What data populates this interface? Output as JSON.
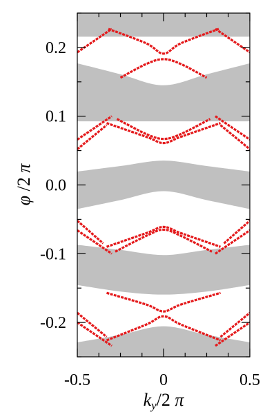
{
  "chart_data": {
    "type": "line",
    "xlabel": "k_y/2 π",
    "ylabel": "φ /2 π",
    "xlim": [
      -0.5,
      0.5
    ],
    "ylim": [
      -0.25,
      0.25
    ],
    "x_ticks": [
      -0.5,
      0,
      0.5
    ],
    "x_tick_labels": [
      "-0.5",
      "0",
      "0.5"
    ],
    "y_ticks": [
      -0.2,
      -0.1,
      0.0,
      0.1,
      0.2
    ],
    "y_tick_labels": [
      "-0.2",
      "-0.1",
      "0.0",
      "0.1",
      "0.2"
    ],
    "grid": false,
    "colors": {
      "bands": "#c0c0c0",
      "edge_states": "#e41a1c",
      "axes": "#000000"
    },
    "bands": [
      {
        "x": [
          -0.5,
          0.0,
          0.5
        ],
        "y_lower": [
          0.2157,
          0.2157,
          0.2157
        ],
        "y_upper": [
          0.25,
          0.25,
          0.25
        ]
      },
      {
        "x": [
          -0.5,
          -0.25,
          0.0,
          0.25,
          0.5
        ],
        "y_lower": [
          0.0925,
          0.0925,
          0.0925,
          0.0925,
          0.0925
        ],
        "y_upper": [
          0.177,
          0.161,
          0.145,
          0.161,
          0.177
        ]
      },
      {
        "x": [
          -0.5,
          -0.25,
          0.0,
          0.25,
          0.5
        ],
        "y_lower": [
          -0.035,
          -0.022,
          -0.009,
          -0.022,
          -0.035
        ],
        "y_upper": [
          0.0195,
          0.0275,
          0.0355,
          0.0275,
          0.0195
        ]
      },
      {
        "x": [
          -0.5,
          -0.25,
          0.0,
          0.25,
          0.5
        ],
        "y_lower": [
          -0.1455,
          -0.155,
          -0.1595,
          -0.155,
          -0.1455
        ],
        "y_upper": [
          -0.087,
          -0.0945,
          -0.102,
          -0.0945,
          -0.087
        ]
      },
      {
        "x": [
          -0.5,
          -0.25,
          0.0,
          0.25,
          0.5
        ],
        "y_lower": [
          -0.25,
          -0.25,
          -0.25,
          -0.25,
          -0.25
        ],
        "y_upper": [
          -0.229,
          -0.218,
          -0.2055,
          -0.218,
          -0.229
        ]
      }
    ],
    "edge_states": [
      {
        "x": [
          -0.5,
          -0.3
        ],
        "y": [
          0.193,
          0.227
        ]
      },
      {
        "x": [
          -0.32,
          -0.1,
          0.0,
          0.1,
          0.32
        ],
        "y": [
          0.227,
          0.206,
          0.191,
          0.206,
          0.227
        ]
      },
      {
        "x": [
          -0.25,
          -0.1,
          0.0,
          0.1,
          0.25
        ],
        "y": [
          0.156,
          0.176,
          0.183,
          0.176,
          0.156
        ]
      },
      {
        "x": [
          0.3,
          0.5
        ],
        "y": [
          0.227,
          0.193
        ]
      },
      {
        "x": [
          -0.5,
          -0.33
        ],
        "y": [
          0.052,
          0.087
        ]
      },
      {
        "x": [
          -0.5,
          -0.3
        ],
        "y": [
          0.066,
          0.1
        ]
      },
      {
        "x": [
          -0.33,
          -0.1,
          0.0,
          0.1,
          0.33
        ],
        "y": [
          0.09,
          0.07,
          0.061,
          0.07,
          0.09
        ]
      },
      {
        "x": [
          -0.27,
          -0.1,
          0.0,
          0.1,
          0.27
        ],
        "y": [
          0.096,
          0.074,
          0.067,
          0.074,
          0.096
        ]
      },
      {
        "x": [
          0.3,
          0.5
        ],
        "y": [
          0.1,
          0.066
        ]
      },
      {
        "x": [
          0.33,
          0.5
        ],
        "y": [
          0.087,
          0.052
        ]
      },
      {
        "x": [
          -0.5,
          -0.35
        ],
        "y": [
          -0.052,
          -0.085
        ]
      },
      {
        "x": [
          -0.5,
          -0.3
        ],
        "y": [
          -0.066,
          -0.1
        ]
      },
      {
        "x": [
          -0.33,
          -0.1,
          0.0,
          0.1,
          0.33
        ],
        "y": [
          -0.09,
          -0.07,
          -0.061,
          -0.07,
          -0.09
        ]
      },
      {
        "x": [
          -0.28,
          -0.1,
          0.0,
          0.1,
          0.28
        ],
        "y": [
          -0.097,
          -0.074,
          -0.065,
          -0.074,
          -0.097
        ]
      },
      {
        "x": [
          0.3,
          0.5
        ],
        "y": [
          -0.1,
          -0.066
        ]
      },
      {
        "x": [
          0.35,
          0.5
        ],
        "y": [
          -0.085,
          -0.052
        ]
      },
      {
        "x": [
          -0.5,
          -0.33
        ],
        "y": [
          -0.186,
          -0.221
        ]
      },
      {
        "x": [
          -0.5,
          -0.3
        ],
        "y": [
          -0.2,
          -0.234
        ]
      },
      {
        "x": [
          -0.33,
          -0.1,
          0.0,
          0.1,
          0.33
        ],
        "y": [
          -0.157,
          -0.174,
          -0.184,
          -0.174,
          -0.157
        ]
      },
      {
        "x": [
          -0.33,
          -0.1,
          0.0,
          0.1,
          0.33
        ],
        "y": [
          -0.226,
          -0.203,
          -0.191,
          -0.203,
          -0.226
        ]
      },
      {
        "x": [
          0.3,
          0.5
        ],
        "y": [
          -0.234,
          -0.2
        ]
      },
      {
        "x": [
          0.33,
          0.5
        ],
        "y": [
          -0.221,
          -0.186
        ]
      }
    ]
  }
}
